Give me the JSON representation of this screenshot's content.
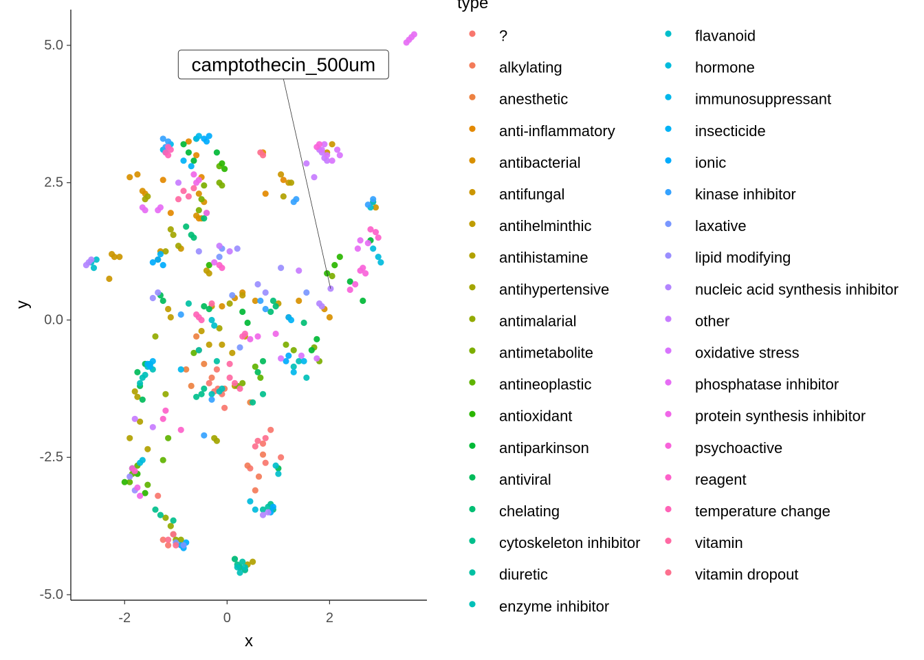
{
  "chart_data": {
    "type": "scatter",
    "xlabel": "x",
    "ylabel": "y",
    "xlim": [
      -3.05,
      3.9
    ],
    "ylim": [
      -5.1,
      5.65
    ],
    "x_ticks": [
      -2,
      0,
      2
    ],
    "y_ticks": [
      -5.0,
      -2.5,
      0.0,
      2.5,
      5.0
    ],
    "x_tick_labels": [
      "-2",
      "0",
      "2"
    ],
    "y_tick_labels": [
      "-5.0",
      "-2.5",
      "0.0",
      "2.5",
      "5.0"
    ],
    "grid": false,
    "legend": {
      "title": "type",
      "placement": "right",
      "columns": 2,
      "entries": [
        {
          "label": "?",
          "color": "#F8766D"
        },
        {
          "label": "alkylating",
          "color": "#F37B59"
        },
        {
          "label": "anesthetic",
          "color": "#ED8141"
        },
        {
          "label": "anti-inflammatory",
          "color": "#E38900"
        },
        {
          "label": "antibacterial",
          "color": "#D89000"
        },
        {
          "label": "antifungal",
          "color": "#CB9600"
        },
        {
          "label": "antihelminthic",
          "color": "#BF9C00"
        },
        {
          "label": "antihistamine",
          "color": "#B1A100"
        },
        {
          "label": "antihypertensive",
          "color": "#A3A500"
        },
        {
          "label": "antimalarial",
          "color": "#92AA00"
        },
        {
          "label": "antimetabolite",
          "color": "#7CAE00"
        },
        {
          "label": "antineoplastic",
          "color": "#5FB300"
        },
        {
          "label": "antioxidant",
          "color": "#2AB600"
        },
        {
          "label": "antiparkinson",
          "color": "#00B936"
        },
        {
          "label": "antiviral",
          "color": "#00BB5A"
        },
        {
          "label": "chelating",
          "color": "#00BE74"
        },
        {
          "label": "cytoskeleton inhibitor",
          "color": "#00BF8C"
        },
        {
          "label": "diuretic",
          "color": "#00C0A3"
        },
        {
          "label": "enzyme inhibitor",
          "color": "#00C0B8"
        },
        {
          "label": "flavanoid",
          "color": "#00BECB"
        },
        {
          "label": "hormone",
          "color": "#00BBDC"
        },
        {
          "label": "immunosuppressant",
          "color": "#00B7EB"
        },
        {
          "label": "insecticide",
          "color": "#00B2F6"
        },
        {
          "label": "ionic",
          "color": "#00ABFD"
        },
        {
          "label": "kinase inhibitor",
          "color": "#35A2FF"
        },
        {
          "label": "laxative",
          "color": "#7997FF"
        },
        {
          "label": "lipid modifying",
          "color": "#9A8EFF"
        },
        {
          "label": "nucleic acid synthesis inhibitor",
          "color": "#B385FF"
        },
        {
          "label": "other",
          "color": "#C77CFF"
        },
        {
          "label": "oxidative stress",
          "color": "#D874FD"
        },
        {
          "label": "phosphatase inhibitor",
          "color": "#E66CF4"
        },
        {
          "label": "protein synthesis inhibitor",
          "color": "#F066E8"
        },
        {
          "label": "psychoactive",
          "color": "#F863DA"
        },
        {
          "label": "reagent",
          "color": "#FD61CA"
        },
        {
          "label": "temperature change",
          "color": "#FF64B7"
        },
        {
          "label": "vitamin",
          "color": "#FF69A3"
        },
        {
          "label": "vitamin dropout",
          "color": "#FD6F8E"
        }
      ]
    },
    "annotation": {
      "label": "camptothecin_500um",
      "x": 2.02,
      "y": 0.57,
      "label_x": 1.1,
      "label_y": 4.65
    },
    "point_size": "small",
    "series": [
      {
        "name": "?",
        "x": [
          -0.35,
          -0.25,
          -0.18,
          -0.1,
          0.7,
          0.75,
          0.85,
          1.05,
          0.45,
          -0.05,
          -0.2,
          -1.25,
          -1.15,
          -1.35
        ],
        "y": [
          -1.15,
          -1.3,
          -1.25,
          -1.35,
          -2.25,
          -2.6,
          -2.0,
          -2.5,
          -2.7,
          -1.6,
          -0.9,
          -4.0,
          -4.1,
          -3.2
        ]
      },
      {
        "name": "alkylating",
        "x": [
          0.62,
          0.7,
          0.55,
          -0.3,
          -0.05,
          0.4
        ],
        "y": [
          -2.85,
          -2.45,
          -3.1,
          -1.05,
          -1.25,
          -2.65
        ]
      },
      {
        "name": "anesthetic",
        "x": [
          -0.55,
          -0.45,
          -0.6,
          -0.8,
          -0.7,
          0.45,
          1.2
        ],
        "y": [
          -0.55,
          -0.8,
          -0.3,
          -0.9,
          -1.2,
          -1.5,
          0.05
        ]
      },
      {
        "name": "anti-inflammatory",
        "x": [
          -0.75,
          -0.6,
          -0.5,
          -0.55,
          0.7,
          0.75,
          -1.25,
          -1.1,
          -0.4,
          1.1
        ],
        "y": [
          3.25,
          3.0,
          2.6,
          1.85,
          3.05,
          2.3,
          2.55,
          1.95,
          1.95,
          2.55
        ]
      },
      {
        "name": "antibacterial",
        "x": [
          -0.45,
          -0.55,
          -0.6,
          -0.5,
          0.15,
          -0.1,
          0.3,
          0.55,
          1.4,
          1.9,
          2.0,
          -1.6,
          -1.9,
          -1.75,
          -1.65
        ],
        "y": [
          2.15,
          2.3,
          1.9,
          1.85,
          0.4,
          0.25,
          0.5,
          0.35,
          0.35,
          0.2,
          0.05,
          2.3,
          2.6,
          2.65,
          2.35
        ]
      },
      {
        "name": "antifungal",
        "x": [
          -2.2,
          -2.25,
          -2.3,
          -2.1,
          -1.3,
          -0.9,
          -1.35,
          1.05,
          1.2,
          2.05,
          1.95,
          2.85,
          2.9,
          -0.3
        ],
        "y": [
          1.15,
          1.2,
          0.75,
          1.15,
          1.25,
          1.3,
          1.1,
          2.65,
          2.5,
          3.2,
          3.05,
          2.15,
          2.05,
          0.25
        ]
      },
      {
        "name": "antihelminthic",
        "x": [
          -0.4,
          -0.35,
          -1.15,
          -1.1,
          0.15,
          0.35,
          0.3,
          1.0,
          -0.1,
          0.1,
          -0.35,
          -0.5
        ],
        "y": [
          0.9,
          0.85,
          0.2,
          0.05,
          -1.2,
          -0.3,
          0.45,
          0.3,
          -0.45,
          -0.6,
          -0.45,
          -0.2
        ]
      },
      {
        "name": "antihistamine",
        "x": [
          -1.75,
          -1.8,
          -1.9,
          -1.7,
          -1.55,
          0.4,
          0.35,
          0.5,
          1.1,
          1.25
        ],
        "y": [
          -1.4,
          -1.3,
          -2.15,
          -1.85,
          -2.35,
          -4.45,
          -4.55,
          -4.4,
          2.25,
          2.5
        ]
      },
      {
        "name": "antihypertensive",
        "x": [
          -1.1,
          -1.05,
          -0.95,
          -1.2,
          -0.25,
          -0.2,
          0.05,
          -0.15,
          -1.6,
          -1.55
        ],
        "y": [
          1.65,
          1.55,
          1.35,
          1.25,
          -2.15,
          -2.2,
          0.3,
          -0.15,
          2.2,
          2.25
        ]
      },
      {
        "name": "antimalarial",
        "x": [
          -1.1,
          -1.2,
          -1.05,
          -1.0,
          -0.9,
          -1.2,
          -1.4,
          0.15,
          0.25
        ],
        "y": [
          -3.75,
          -3.6,
          -3.9,
          -4.0,
          -4.0,
          -1.35,
          -0.3,
          -4.35,
          -4.5
        ]
      },
      {
        "name": "antimetabolite",
        "x": [
          -0.55,
          -0.5,
          -0.45,
          -0.15,
          -0.1,
          0.2,
          0.3,
          1.15,
          1.3,
          1.7,
          1.8,
          2.05
        ],
        "y": [
          2.0,
          2.2,
          2.45,
          2.5,
          2.45,
          -1.2,
          -1.15,
          -0.45,
          -0.55,
          -0.5,
          -0.75,
          0.8
        ]
      },
      {
        "name": "antineoplastic",
        "x": [
          -1.85,
          -1.75,
          -1.9,
          -1.55,
          -1.25,
          -1.15,
          -0.65,
          -0.15,
          0.55,
          0.65
        ],
        "y": [
          -2.8,
          -2.65,
          -2.95,
          -3.0,
          -2.55,
          -2.15,
          -0.6,
          2.8,
          -0.85,
          -1.05
        ]
      },
      {
        "name": "antioxidant",
        "x": [
          -2.0,
          -1.85,
          -1.75,
          -1.6,
          -0.35,
          -0.1,
          -0.05,
          2.1,
          2.2,
          1.95
        ],
        "y": [
          -2.95,
          -2.7,
          -2.8,
          -3.15,
          1.0,
          2.85,
          2.75,
          1.0,
          1.15,
          0.85
        ]
      },
      {
        "name": "antiparkinson",
        "x": [
          -0.85,
          -0.75,
          -0.65,
          -0.6,
          -0.2,
          0.3,
          0.4,
          1.65,
          1.75,
          2.4,
          2.65,
          2.8
        ],
        "y": [
          3.2,
          3.05,
          2.9,
          3.3,
          3.05,
          0.15,
          -0.05,
          -0.55,
          -0.35,
          0.7,
          0.35,
          1.45
        ]
      },
      {
        "name": "antiviral",
        "x": [
          -1.7,
          -1.65,
          -1.6,
          -1.75,
          -1.3,
          -1.25,
          -0.45,
          -0.35,
          0.6,
          0.7,
          1.0
        ],
        "y": [
          -1.2,
          -1.45,
          -0.8,
          -0.95,
          0.45,
          0.35,
          0.25,
          0.2,
          -0.95,
          -0.75,
          -2.7
        ]
      },
      {
        "name": "chelating",
        "x": [
          -0.8,
          -0.7,
          -0.65,
          -0.45,
          0.85,
          0.9,
          0.95,
          1.5
        ],
        "y": [
          1.7,
          1.55,
          1.5,
          1.85,
          0.15,
          0.35,
          0.25,
          -0.05
        ]
      },
      {
        "name": "cytoskeleton inhibitor",
        "x": [
          -1.4,
          -1.3,
          -1.05,
          -0.6,
          -0.5,
          -0.45,
          0.5,
          0.7,
          0.85,
          0.9,
          0.15,
          0.2
        ],
        "y": [
          -3.45,
          -3.55,
          -3.65,
          -1.4,
          -1.35,
          -1.25,
          -1.5,
          -1.35,
          -3.35,
          -3.45,
          -4.35,
          -4.45
        ]
      },
      {
        "name": "diuretic",
        "x": [
          0.7,
          0.8,
          -0.75,
          -0.55,
          -0.2,
          0.25,
          0.3,
          0.35
        ],
        "y": [
          -3.45,
          -3.4,
          0.3,
          -0.55,
          -0.75,
          -4.5,
          -4.4,
          -4.55
        ]
      },
      {
        "name": "enzyme inhibitor",
        "x": [
          -1.6,
          -1.55,
          -1.65,
          -1.7,
          -1.5,
          -1.45,
          -0.3,
          -0.15,
          -0.1,
          0.2,
          0.25,
          0.35,
          1.3,
          1.4,
          1.55
        ],
        "y": [
          -1.0,
          -0.85,
          -1.05,
          -1.15,
          -0.8,
          -0.9,
          -1.35,
          -1.3,
          -1.25,
          -4.5,
          -4.6,
          -4.5,
          -0.85,
          -0.75,
          -1.05
        ]
      },
      {
        "name": "flavanoid",
        "x": [
          -2.65,
          -2.6,
          -2.55,
          0.95,
          1.0,
          2.8,
          2.85,
          -0.25,
          -0.3
        ],
        "y": [
          1.05,
          0.95,
          1.1,
          -2.65,
          -2.8,
          2.05,
          2.15,
          -0.1,
          0.0
        ]
      },
      {
        "name": "hormone",
        "x": [
          -1.85,
          -1.7,
          -1.65,
          0.45,
          0.55,
          2.85,
          2.95,
          3.0
        ],
        "y": [
          -2.7,
          -2.6,
          -2.55,
          -3.3,
          -3.45,
          1.3,
          1.15,
          1.05
        ]
      },
      {
        "name": "immunosuppressant",
        "x": [
          -1.25,
          -1.2,
          -1.1,
          -0.6,
          -0.55,
          -0.9,
          1.3,
          1.5
        ],
        "y": [
          3.1,
          3.05,
          3.2,
          3.3,
          3.35,
          -0.9,
          -0.95,
          -0.75
        ]
      },
      {
        "name": "insecticide",
        "x": [
          -1.55,
          -1.5,
          -1.45,
          -1.3,
          1.2,
          1.25,
          -0.85,
          -0.7
        ],
        "y": [
          -0.8,
          -0.85,
          -0.75,
          1.2,
          0.05,
          0.0,
          2.9,
          2.8
        ]
      },
      {
        "name": "ionic",
        "x": [
          -1.45,
          -1.35,
          -1.25,
          -0.45,
          -0.4,
          -0.35,
          0.85,
          0.9,
          1.15,
          1.2,
          -0.9,
          -0.85,
          -0.8
        ],
        "y": [
          1.05,
          1.1,
          1.0,
          3.3,
          3.25,
          3.35,
          -3.5,
          -3.4,
          -0.75,
          -0.65,
          -4.1,
          -4.15,
          -4.05
        ]
      },
      {
        "name": "kinase inhibitor",
        "x": [
          -1.25,
          -1.15,
          -1.2,
          -0.9,
          -0.3,
          0.65,
          0.75,
          1.3,
          1.35,
          2.75,
          2.85,
          -0.45
        ],
        "y": [
          3.3,
          3.25,
          3.15,
          0.1,
          -1.45,
          0.35,
          0.2,
          2.15,
          2.2,
          2.1,
          2.2,
          -2.1
        ]
      },
      {
        "name": "laxative",
        "x": [
          -1.0,
          -0.85,
          0.25,
          0.1,
          1.55,
          -0.1,
          -0.15
        ],
        "y": [
          -4.05,
          -4.1,
          -0.5,
          0.45,
          0.5,
          1.3,
          1.15
        ]
      },
      {
        "name": "lipid modifying",
        "x": [
          -1.9,
          -1.8,
          -1.45,
          -1.35,
          0.6,
          0.75,
          1.05,
          -0.55,
          0.2
        ],
        "y": [
          -2.85,
          -3.1,
          0.4,
          0.5,
          0.65,
          0.5,
          0.95,
          1.25,
          1.3
        ]
      },
      {
        "name": "nucleic acid synthesis inhibitor",
        "x": [
          -2.75,
          -2.7,
          -2.65,
          0.7,
          0.8,
          2.02,
          1.8,
          1.85
        ],
        "y": [
          1.0,
          1.05,
          1.1,
          -3.55,
          -3.5,
          0.57,
          0.3,
          0.25
        ]
      },
      {
        "name": "other",
        "x": [
          1.8,
          1.85,
          1.9,
          1.95,
          1.7,
          1.55,
          1.4,
          -0.95,
          -0.15,
          0.05,
          -1.8,
          -1.45
        ],
        "y": [
          3.1,
          3.05,
          2.95,
          2.9,
          2.6,
          2.85,
          0.9,
          2.5,
          1.35,
          1.25,
          -1.8,
          -1.95
        ]
      },
      {
        "name": "oxidative stress",
        "x": [
          2.15,
          2.2,
          2.05,
          1.95,
          1.85,
          1.9,
          1.75,
          1.45,
          1.05
        ],
        "y": [
          3.1,
          3.0,
          2.9,
          3.0,
          3.1,
          3.2,
          -0.7,
          -0.65,
          -0.7
        ]
      },
      {
        "name": "phosphatase inhibitor",
        "x": [
          3.5,
          3.55,
          3.6,
          3.65,
          -1.6,
          -1.65,
          -1.35,
          -1.3,
          -0.4,
          -0.25,
          2.6,
          2.75,
          2.55
        ],
        "y": [
          5.05,
          5.1,
          5.15,
          5.2,
          2.0,
          2.05,
          2.0,
          2.05,
          1.95,
          1.05,
          1.45,
          1.4,
          1.3
        ]
      },
      {
        "name": "protein synthesis inhibitor",
        "x": [
          -0.65,
          -0.6,
          -0.55,
          -1.75,
          -1.7,
          0.45,
          0.6,
          0.95
        ],
        "y": [
          2.65,
          2.5,
          2.55,
          -3.05,
          -3.2,
          -0.35,
          -0.3,
          -0.25
        ]
      },
      {
        "name": "psychoactive",
        "x": [
          1.75,
          1.8,
          2.6,
          2.7,
          2.65,
          2.4,
          2.5
        ],
        "y": [
          3.15,
          3.2,
          0.9,
          0.85,
          0.95,
          0.55,
          0.65
        ]
      },
      {
        "name": "reagent",
        "x": [
          -0.15,
          -0.1,
          2.9,
          2.95,
          2.8,
          -1.85,
          -1.8,
          -1.25,
          -1.2,
          -0.9
        ],
        "y": [
          1.0,
          0.95,
          1.6,
          1.5,
          1.65,
          -2.7,
          -2.75,
          -1.8,
          -1.65,
          -2.0
        ]
      },
      {
        "name": "temperature change",
        "x": [
          -1.2,
          -1.15,
          -1.1,
          -1.15,
          -0.6,
          -0.55,
          -0.5,
          0.3,
          0.35
        ],
        "y": [
          3.05,
          3.15,
          3.1,
          3.0,
          0.1,
          0.05,
          0.0,
          -0.3,
          -0.25
        ]
      },
      {
        "name": "vitamin",
        "x": [
          -0.95,
          -0.85,
          -0.75,
          -0.65,
          -0.3,
          0.05,
          0.15,
          0.25,
          0.05
        ],
        "y": [
          2.2,
          2.35,
          2.25,
          2.4,
          0.3,
          -0.8,
          -1.15,
          -1.25,
          -1.05
        ]
      },
      {
        "name": "vitamin dropout",
        "x": [
          0.65,
          0.7,
          -1.15,
          -1.05,
          -1.0,
          0.55,
          0.6,
          0.75
        ],
        "y": [
          3.05,
          3.0,
          -4.0,
          -3.9,
          -4.1,
          -2.3,
          -2.2,
          -2.15
        ]
      }
    ]
  }
}
